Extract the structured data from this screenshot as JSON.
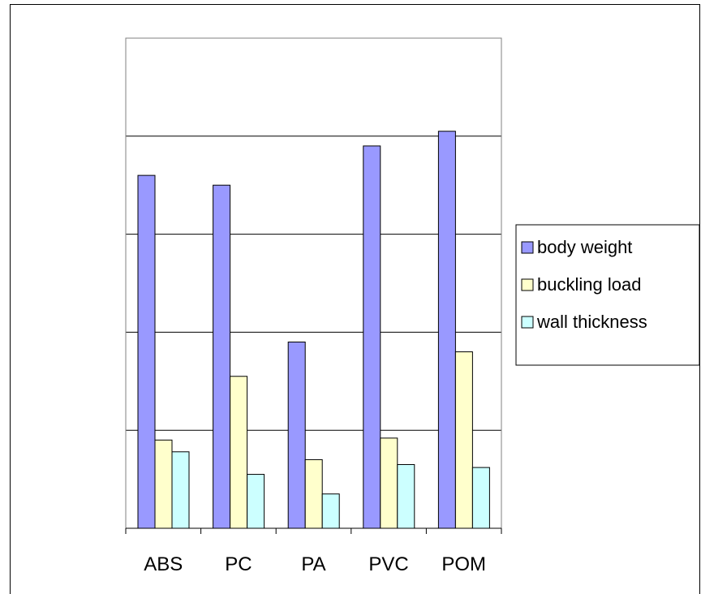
{
  "chart_data": {
    "type": "bar",
    "categories": [
      "ABS",
      "PC",
      "PA",
      "PVC",
      "POM"
    ],
    "series": [
      {
        "name": "body weight",
        "values": [
          3.6,
          3.5,
          1.9,
          3.9,
          4.05
        ],
        "color": "#9999FF"
      },
      {
        "name": "buckling load",
        "values": [
          0.9,
          1.55,
          0.7,
          0.92,
          1.8
        ],
        "color": "#FFFFCC"
      },
      {
        "name": "wall thickness",
        "values": [
          0.78,
          0.55,
          0.35,
          0.65,
          0.62
        ],
        "color": "#CCFFFF"
      }
    ],
    "ylim": [
      0,
      5
    ],
    "grid": true,
    "legend": "right"
  }
}
